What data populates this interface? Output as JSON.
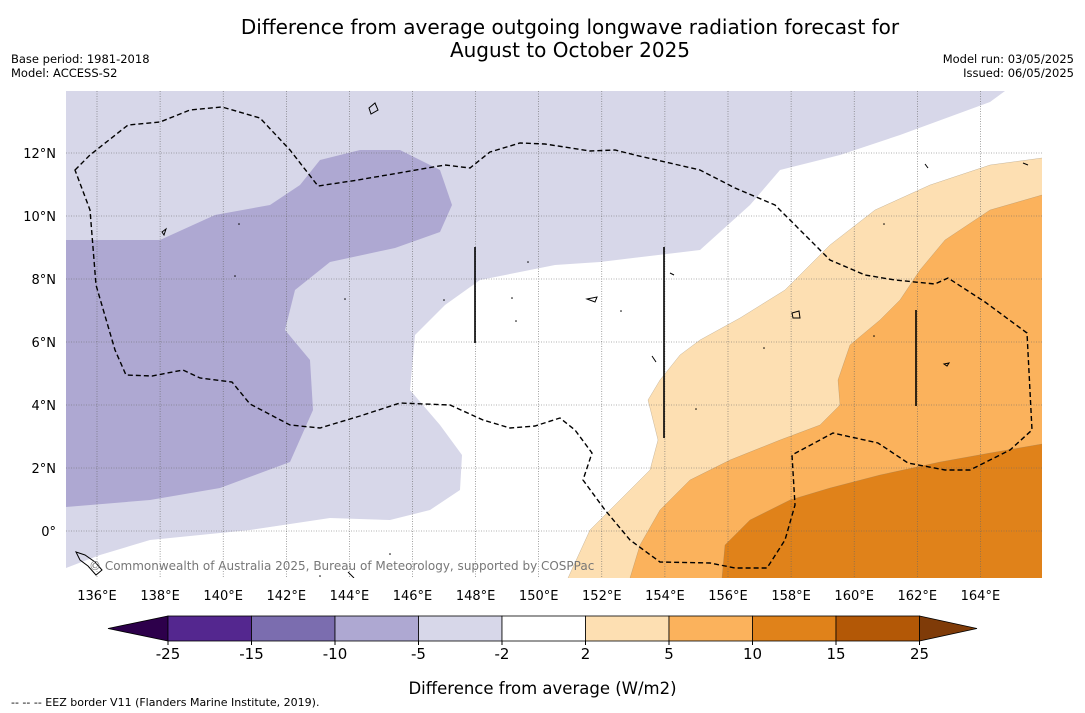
{
  "header": {
    "title_line1": "Difference from average outgoing longwave radiation forecast for",
    "title_line2": "August to October 2025",
    "base_period": "Base period: 1981-2018",
    "model": "Model: ACCESS-S2",
    "model_run": "Model run: 03/05/2025",
    "issued": "Issued: 06/05/2025"
  },
  "map": {
    "lon_ticks": [
      "136°E",
      "138°E",
      "140°E",
      "142°E",
      "144°E",
      "146°E",
      "148°E",
      "150°E",
      "152°E",
      "154°E",
      "156°E",
      "158°E",
      "160°E",
      "162°E",
      "164°E"
    ],
    "lat_ticks": [
      "12°N",
      "10°N",
      "8°N",
      "6°N",
      "4°N",
      "2°N",
      "0°"
    ],
    "watermark": "© Commonwealth of Australia 2025, Bureau of Meteorology, supported by COSPPac"
  },
  "colorbar": {
    "ticks": [
      "-25",
      "-15",
      "-10",
      "-5",
      "-2",
      "2",
      "5",
      "10",
      "15",
      "25"
    ],
    "colors": [
      "#54278f",
      "#7b6daf",
      "#aea8d2",
      "#d7d7e9",
      "#ffffff",
      "#fddfb2",
      "#fbb25c",
      "#e0821a",
      "#b35806"
    ],
    "extend_low": "#2d004b",
    "extend_high": "#7f3b08",
    "label": "Difference from average (W/m2)"
  },
  "footnote": "--  --  -- EEZ border V11 (Flanders Marine Institute, 2019)."
}
